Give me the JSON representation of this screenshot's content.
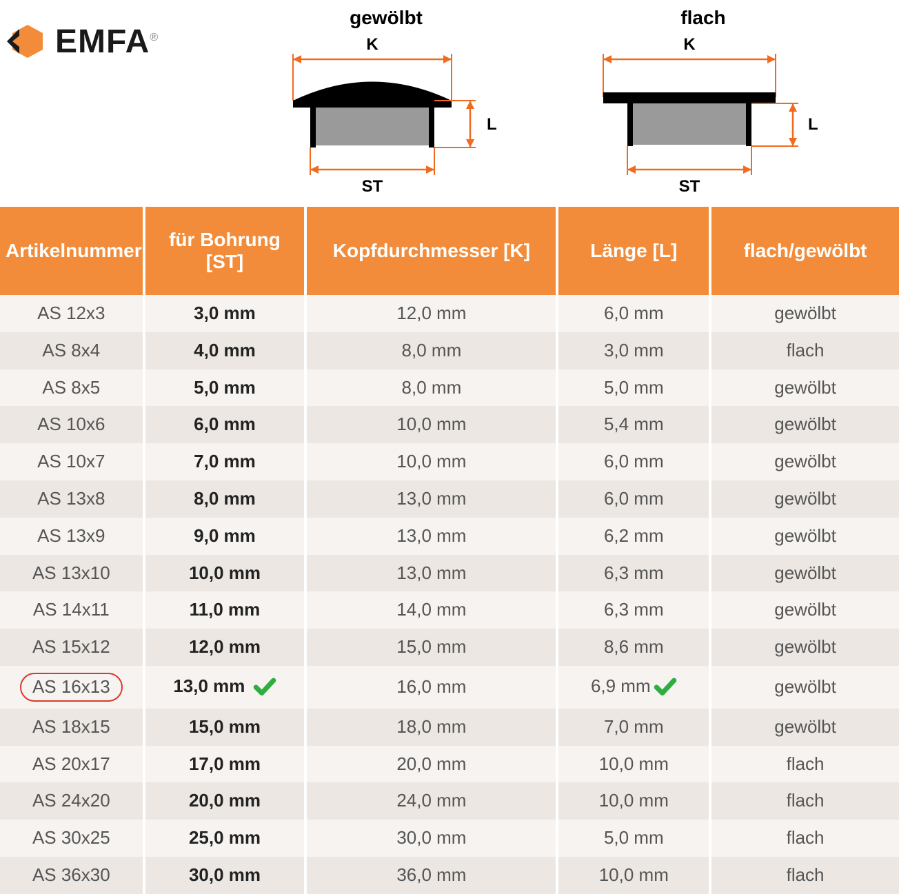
{
  "brand": {
    "name": "EMFA",
    "reg": "®"
  },
  "colors": {
    "header_bg": "#f28c3a",
    "header_fg": "#ffffff",
    "row_odd": "#f6f3f0",
    "row_even": "#ece7e2",
    "text": "#555555",
    "bold_text": "#222222",
    "circle_border": "#d83a2e",
    "check_green": "#2fae3f",
    "logo_orange": "#f28c3a",
    "logo_black": "#1a1a1a",
    "diagram_black": "#000000",
    "diagram_grey": "#9a9a9a",
    "arrow_orange": "#ef6b1f"
  },
  "diagrams": {
    "left": {
      "title": "gewölbt",
      "k": "K",
      "st": "ST",
      "l": "L",
      "type": "domed"
    },
    "right": {
      "title": "flach",
      "k": "K",
      "st": "ST",
      "l": "L",
      "type": "flat"
    }
  },
  "columns": [
    "Artikelnummer",
    "für Bohrung [ST]",
    "Kopfdurchmesser [K]",
    "Länge [L]",
    "flach/gewölbt"
  ],
  "rows": [
    {
      "art": "AS 12x3",
      "st": "3,0 mm",
      "k": "12,0 mm",
      "l": "6,0 mm",
      "type": "gewölbt",
      "highlight": false
    },
    {
      "art": "AS 8x4",
      "st": "4,0 mm",
      "k": "8,0 mm",
      "l": "3,0 mm",
      "type": "flach",
      "highlight": false
    },
    {
      "art": "AS 8x5",
      "st": "5,0 mm",
      "k": "8,0 mm",
      "l": "5,0 mm",
      "type": "gewölbt",
      "highlight": false
    },
    {
      "art": "AS 10x6",
      "st": "6,0 mm",
      "k": "10,0 mm",
      "l": "5,4 mm",
      "type": "gewölbt",
      "highlight": false
    },
    {
      "art": "AS 10x7",
      "st": "7,0 mm",
      "k": "10,0 mm",
      "l": "6,0 mm",
      "type": "gewölbt",
      "highlight": false
    },
    {
      "art": "AS 13x8",
      "st": "8,0 mm",
      "k": "13,0 mm",
      "l": "6,0 mm",
      "type": "gewölbt",
      "highlight": false
    },
    {
      "art": "AS 13x9",
      "st": "9,0 mm",
      "k": "13,0 mm",
      "l": "6,2 mm",
      "type": "gewölbt",
      "highlight": false
    },
    {
      "art": "AS 13x10",
      "st": "10,0 mm",
      "k": "13,0 mm",
      "l": "6,3 mm",
      "type": "gewölbt",
      "highlight": false
    },
    {
      "art": "AS 14x11",
      "st": "11,0 mm",
      "k": "14,0 mm",
      "l": "6,3 mm",
      "type": "gewölbt",
      "highlight": false
    },
    {
      "art": "AS 15x12",
      "st": "12,0 mm",
      "k": "15,0 mm",
      "l": "8,6 mm",
      "type": "gewölbt",
      "highlight": false
    },
    {
      "art": "AS 16x13",
      "st": "13,0 mm",
      "k": "16,0 mm",
      "l": "6,9 mm",
      "type": "gewölbt",
      "highlight": true
    },
    {
      "art": "AS 18x15",
      "st": "15,0 mm",
      "k": "18,0 mm",
      "l": "7,0 mm",
      "type": "gewölbt",
      "highlight": false
    },
    {
      "art": "AS 20x17",
      "st": "17,0 mm",
      "k": "20,0 mm",
      "l": "10,0 mm",
      "type": "flach",
      "highlight": false
    },
    {
      "art": "AS 24x20",
      "st": "20,0 mm",
      "k": "24,0 mm",
      "l": "10,0 mm",
      "type": "flach",
      "highlight": false
    },
    {
      "art": "AS 30x25",
      "st": "25,0 mm",
      "k": "30,0 mm",
      "l": "5,0 mm",
      "type": "flach",
      "highlight": false
    },
    {
      "art": "AS 36x30",
      "st": "30,0 mm",
      "k": "36,0 mm",
      "l": "10,0 mm",
      "type": "flach",
      "highlight": false
    }
  ],
  "typography": {
    "header_fontsize": 28,
    "cell_fontsize": 26,
    "diagram_title_fontsize": 28,
    "logo_fontsize": 48
  }
}
